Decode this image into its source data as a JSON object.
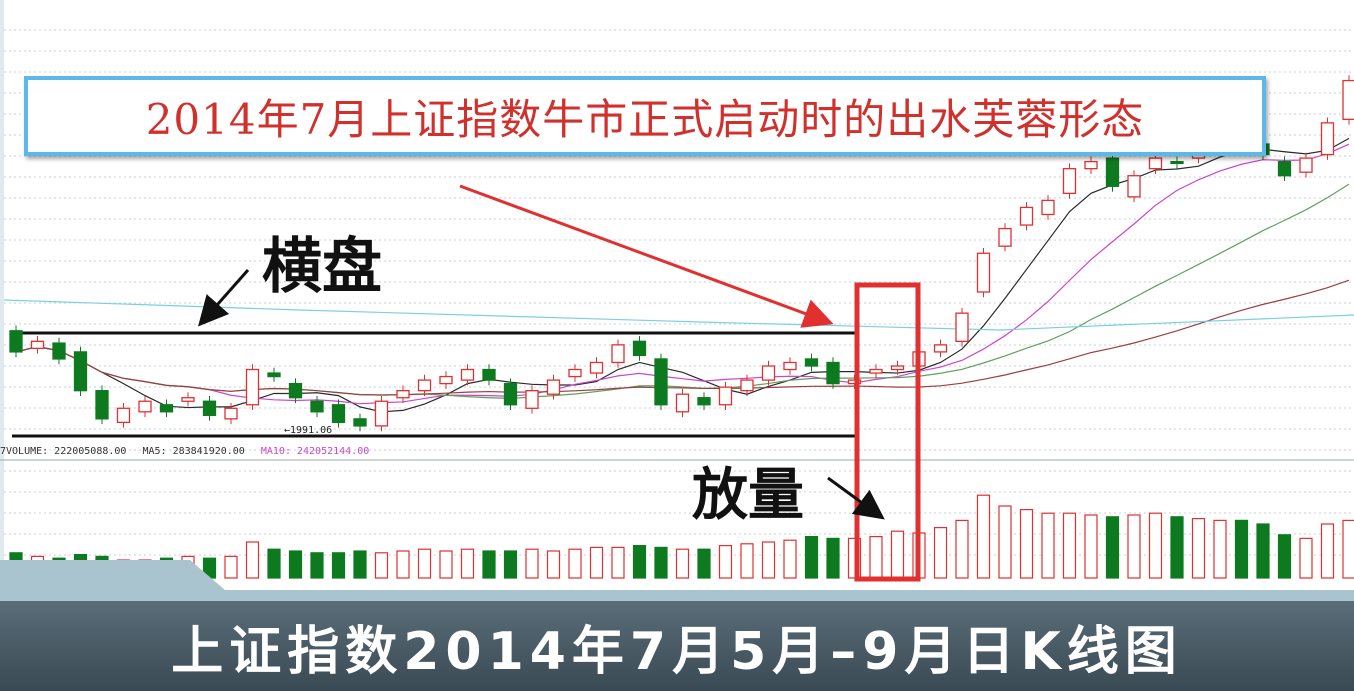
{
  "title": "2014年7月上证指数牛市正式启动时的出水芙蓉形态",
  "caption": "上证指数2014年7月5月–9月日K线图",
  "annotations": {
    "consolidation": "横盘",
    "volume_expansion": "放量"
  },
  "volume_indicator": {
    "volume": "7VOLUME: 222005088.00",
    "ma5": "MA5: 283841920.00",
    "ma10": "MA10: 242052144.00"
  },
  "low_label": "←1991.06",
  "colors": {
    "up": "#e03030",
    "down": "#0e7a20",
    "highlight": "#e03030",
    "ma5": "#2a2a2a",
    "ma10": "#cc44cc",
    "ma20": "#5fa05f",
    "ma60": "#9a4040",
    "ma120": "#7ad0e0"
  },
  "chart_data": {
    "type": "candlestick",
    "subtype": "daily K-line with volume",
    "ylim": [
      1990,
      2200
    ],
    "consolidation_range": [
      2000,
      2058
    ],
    "highlight_candles": [
      42,
      43,
      44
    ],
    "candles": [
      {
        "o": 2052,
        "c": 2040
      },
      {
        "o": 2042,
        "c": 2046
      },
      {
        "o": 2045,
        "c": 2036
      },
      {
        "o": 2040,
        "c": 2018
      },
      {
        "o": 2018,
        "c": 2002
      },
      {
        "o": 2000,
        "c": 2008
      },
      {
        "o": 2006,
        "c": 2012
      },
      {
        "o": 2010,
        "c": 2006
      },
      {
        "o": 2012,
        "c": 2014
      },
      {
        "o": 2012,
        "c": 2004
      },
      {
        "o": 2002,
        "c": 2008
      },
      {
        "o": 2010,
        "c": 2030
      },
      {
        "o": 2028,
        "c": 2026
      },
      {
        "o": 2022,
        "c": 2014
      },
      {
        "o": 2012,
        "c": 2006
      },
      {
        "o": 2010,
        "c": 2000
      },
      {
        "o": 2002,
        "c": 1998
      },
      {
        "o": 1998,
        "c": 2012
      },
      {
        "o": 2014,
        "c": 2018
      },
      {
        "o": 2018,
        "c": 2024
      },
      {
        "o": 2022,
        "c": 2026
      },
      {
        "o": 2024,
        "c": 2030
      },
      {
        "o": 2030,
        "c": 2024
      },
      {
        "o": 2022,
        "c": 2010
      },
      {
        "o": 2008,
        "c": 2018
      },
      {
        "o": 2016,
        "c": 2024
      },
      {
        "o": 2026,
        "c": 2030
      },
      {
        "o": 2028,
        "c": 2034
      },
      {
        "o": 2034,
        "c": 2044
      },
      {
        "o": 2046,
        "c": 2038
      },
      {
        "o": 2036,
        "c": 2010
      },
      {
        "o": 2006,
        "c": 2016
      },
      {
        "o": 2014,
        "c": 2010
      },
      {
        "o": 2010,
        "c": 2020
      },
      {
        "o": 2018,
        "c": 2024
      },
      {
        "o": 2024,
        "c": 2032
      },
      {
        "o": 2030,
        "c": 2034
      },
      {
        "o": 2036,
        "c": 2032
      },
      {
        "o": 2034,
        "c": 2022
      },
      {
        "o": 2022,
        "c": 2024
      },
      {
        "o": 2028,
        "c": 2030
      },
      {
        "o": 2030,
        "c": 2032
      },
      {
        "o": 2032,
        "c": 2040
      },
      {
        "o": 2040,
        "c": 2044
      },
      {
        "o": 2046,
        "c": 2062
      },
      {
        "o": 2074,
        "c": 2096
      },
      {
        "o": 2100,
        "c": 2110
      },
      {
        "o": 2112,
        "c": 2122
      },
      {
        "o": 2118,
        "c": 2126
      },
      {
        "o": 2130,
        "c": 2144
      },
      {
        "o": 2144,
        "c": 2148
      },
      {
        "o": 2150,
        "c": 2134
      },
      {
        "o": 2128,
        "c": 2140
      },
      {
        "o": 2144,
        "c": 2150
      },
      {
        "o": 2148,
        "c": 2147
      },
      {
        "o": 2150,
        "c": 2156
      },
      {
        "o": 2158,
        "c": 2160
      },
      {
        "o": 2162,
        "c": 2160
      },
      {
        "o": 2158,
        "c": 2152
      },
      {
        "o": 2148,
        "c": 2140
      },
      {
        "o": 2142,
        "c": 2150
      },
      {
        "o": 2152,
        "c": 2170
      },
      {
        "o": 2172,
        "c": 2194
      }
    ],
    "volume": [
      14,
      12,
      11,
      13,
      12,
      10,
      10,
      11,
      12,
      11,
      12,
      20,
      16,
      15,
      14,
      14,
      15,
      14,
      15,
      16,
      15,
      16,
      15,
      15,
      16,
      15,
      16,
      17,
      17,
      18,
      17,
      16,
      16,
      18,
      19,
      20,
      21,
      23,
      22,
      22,
      23,
      26,
      25,
      28,
      32,
      46,
      40,
      38,
      36,
      36,
      35,
      34,
      35,
      36,
      34,
      33,
      32,
      32,
      30,
      24,
      22,
      30,
      32
    ]
  }
}
